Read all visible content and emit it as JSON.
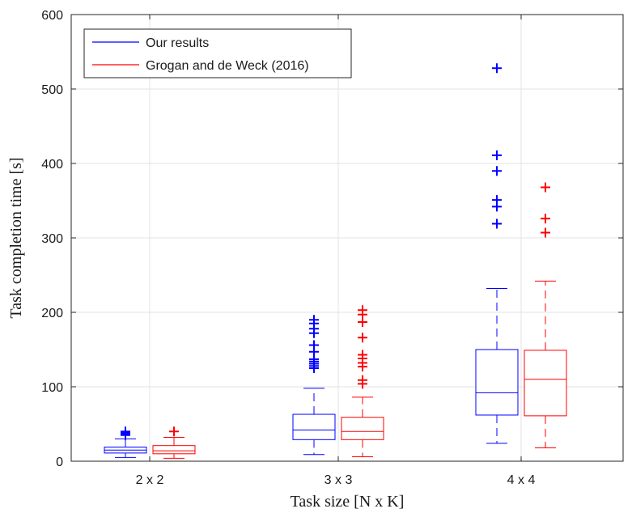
{
  "chart_data": {
    "type": "box",
    "xlabel": "Task size [N x K]",
    "ylabel": "Task completion time [s]",
    "ylim": [
      0,
      600
    ],
    "yticks": [
      0,
      100,
      200,
      300,
      400,
      500,
      600
    ],
    "categories": [
      "2 x 2",
      "3 x 3",
      "4 x 4"
    ],
    "grid": true,
    "legend_position": "top-left",
    "series": [
      {
        "name": "Our results",
        "color": "#0000ff",
        "boxes": [
          {
            "whisker_low": 5,
            "q1": 11,
            "median": 15,
            "q3": 19,
            "whisker_high": 30,
            "outliers": [
              35,
              37,
              39,
              40
            ]
          },
          {
            "whisker_low": 9,
            "q1": 29,
            "median": 42,
            "q3": 63,
            "whisker_high": 98,
            "outliers": [
              125,
              128,
              131,
              134,
              137,
              147,
              156,
              172,
              178,
              185,
              190
            ]
          },
          {
            "whisker_low": 24,
            "q1": 62,
            "median": 92,
            "q3": 150,
            "whisker_high": 232,
            "outliers": [
              319,
              342,
              351,
              390,
              411,
              528
            ]
          }
        ]
      },
      {
        "name": "Grogan and de Weck (2016)",
        "color": "#ff0000",
        "boxes": [
          {
            "whisker_low": 4,
            "q1": 10,
            "median": 14,
            "q3": 21,
            "whisker_high": 32,
            "outliers": [
              40
            ]
          },
          {
            "whisker_low": 6,
            "q1": 29,
            "median": 40,
            "q3": 59,
            "whisker_high": 86,
            "outliers": [
              104,
              109,
              127,
              132,
              138,
              143,
              166,
              187,
              197,
              203
            ]
          },
          {
            "whisker_low": 18,
            "q1": 61,
            "median": 110,
            "q3": 149,
            "whisker_high": 242,
            "outliers": [
              307,
              326,
              368
            ]
          }
        ]
      }
    ]
  }
}
